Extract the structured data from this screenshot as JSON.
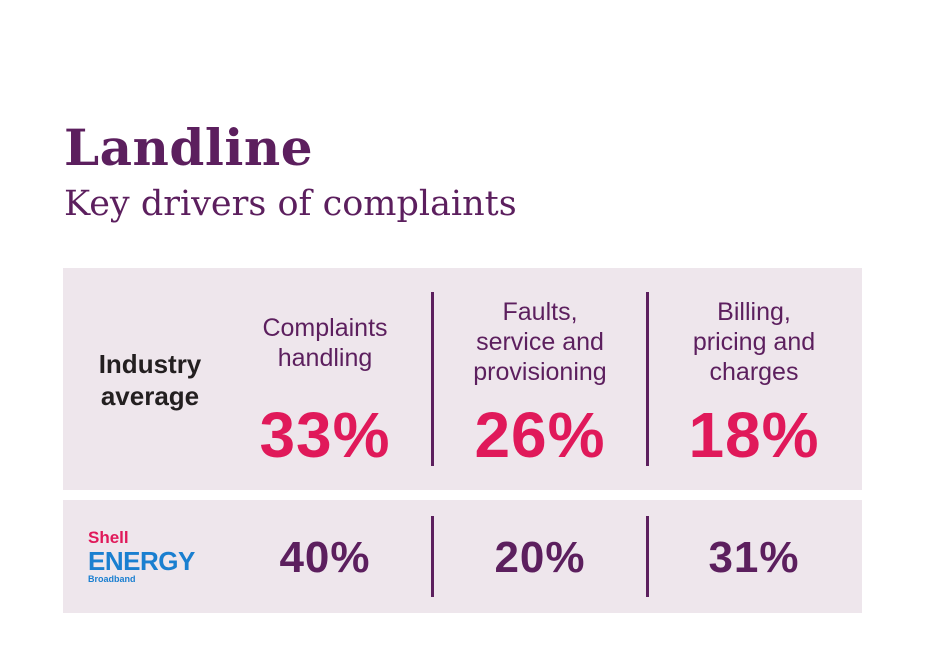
{
  "title": "Landline",
  "subtitle": "Key drivers of complaints",
  "logo": {
    "line1": "Shell",
    "line2": "ENERGY",
    "line3": "Broadband"
  },
  "colors": {
    "title": "#5c1f5e",
    "industry_value": "#e0195a",
    "shell_value": "#5c1f5e",
    "panel": "#eee6ec",
    "logo_red": "#e0195a",
    "logo_blue": "#1a7fd0"
  },
  "chart_data": {
    "type": "table",
    "title": "Landline",
    "subtitle": "Key drivers of complaints",
    "columns": [
      {
        "line1": "Complaints",
        "line2": "handling",
        "line3": ""
      },
      {
        "line1": "Faults,",
        "line2": "service and",
        "line3": "provisioning"
      },
      {
        "line1": "Billing,",
        "line2": "pricing and",
        "line3": "charges"
      }
    ],
    "rows": [
      {
        "label_line1": "Industry",
        "label_line2": "average",
        "values": [
          "33%",
          "26%",
          "18%"
        ]
      },
      {
        "label_line1": "",
        "label_line2": "",
        "values": [
          "40%",
          "20%",
          "31%"
        ]
      }
    ]
  }
}
